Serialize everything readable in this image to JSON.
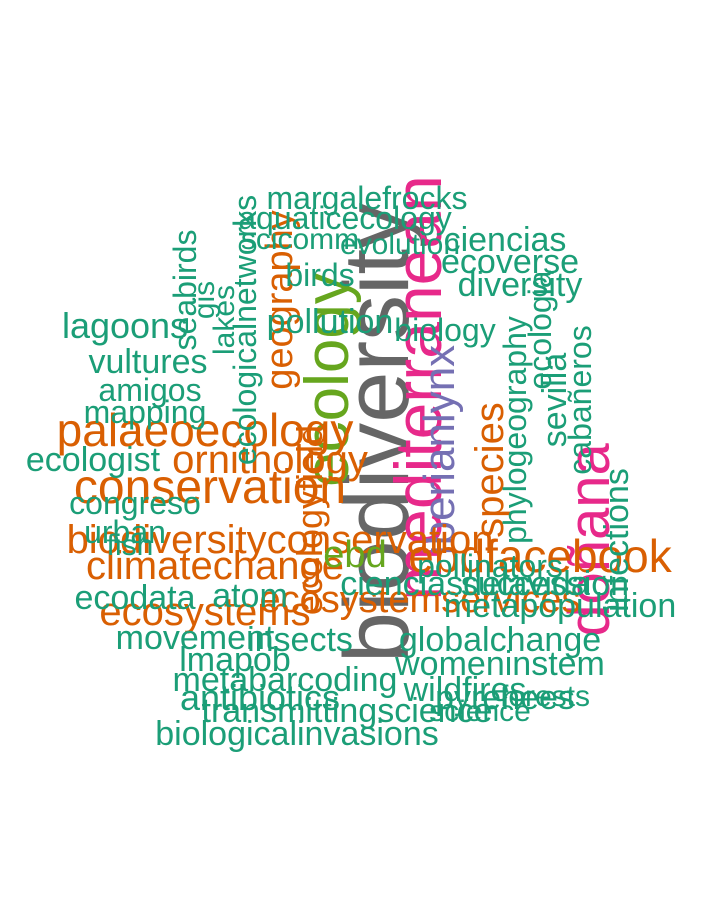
{
  "palette": {
    "teal": "#1b9e77",
    "orange": "#d95f02",
    "purple": "#7570b3",
    "magenta": "#e7298a",
    "green": "#66a61e",
    "grey": "#666666"
  },
  "words": [
    {
      "text": "biodiversity",
      "color": "grey",
      "size": "xl"
    },
    {
      "text": "mediterranean",
      "color": "magenta",
      "size": "xl"
    },
    {
      "text": "ecology",
      "color": "green",
      "size": "xl"
    },
    {
      "text": "doñana",
      "color": "magenta",
      "size": "l"
    },
    {
      "text": "iberianlynx",
      "color": "purple",
      "size": "l"
    },
    {
      "text": "ebdfacebook",
      "color": "orange",
      "size": "l"
    },
    {
      "text": "palaeoecology",
      "color": "orange",
      "size": "l"
    },
    {
      "text": "conservation",
      "color": "orange",
      "size": "l"
    },
    {
      "text": "climatechange",
      "color": "orange",
      "size": "l"
    },
    {
      "text": "ecosystems",
      "color": "orange",
      "size": "l"
    },
    {
      "text": "geography",
      "color": "orange",
      "size": "l"
    },
    {
      "text": "ornithology",
      "color": "orange",
      "size": "l"
    },
    {
      "text": "biodiversityconservation",
      "color": "orange",
      "size": "l"
    },
    {
      "text": "species",
      "color": "orange",
      "size": "l"
    },
    {
      "text": "ecosystemservices",
      "color": "orange",
      "size": "l"
    },
    {
      "text": "ebd",
      "color": "green",
      "size": "l"
    },
    {
      "text": "ecologyfield",
      "color": "orange",
      "size": "l"
    },
    {
      "text": "margalefrocks",
      "color": "teal",
      "size": "m"
    },
    {
      "text": "aquaticecology",
      "color": "teal",
      "size": "m"
    },
    {
      "text": "lagoons",
      "color": "teal",
      "size": "m"
    },
    {
      "text": "vultures",
      "color": "teal",
      "size": "m"
    },
    {
      "text": "amigos",
      "color": "teal",
      "size": "m"
    },
    {
      "text": "mapping",
      "color": "teal",
      "size": "m"
    },
    {
      "text": "ecologist",
      "color": "teal",
      "size": "m"
    },
    {
      "text": "congreso",
      "color": "teal",
      "size": "m"
    },
    {
      "text": "urban",
      "color": "teal",
      "size": "m"
    },
    {
      "text": "fish",
      "color": "teal",
      "size": "m"
    },
    {
      "text": "ecodata",
      "color": "teal",
      "size": "m"
    },
    {
      "text": "atom",
      "color": "teal",
      "size": "m"
    },
    {
      "text": "movement",
      "color": "teal",
      "size": "m"
    },
    {
      "text": "lmapob",
      "color": "teal",
      "size": "m"
    },
    {
      "text": "metabarcoding",
      "color": "teal",
      "size": "m"
    },
    {
      "text": "antibiotics",
      "color": "teal",
      "size": "m"
    },
    {
      "text": "transmittingscience",
      "color": "teal",
      "size": "m"
    },
    {
      "text": "biologicalinvasions",
      "color": "teal",
      "size": "m"
    },
    {
      "text": "insects",
      "color": "teal",
      "size": "m"
    },
    {
      "text": "globalchange",
      "color": "teal",
      "size": "m"
    },
    {
      "text": "womeninstem",
      "color": "teal",
      "size": "m"
    },
    {
      "text": "wildfires",
      "color": "teal",
      "size": "m"
    },
    {
      "text": "pyrenees",
      "color": "teal",
      "size": "m"
    },
    {
      "text": "forests",
      "color": "teal",
      "size": "m"
    },
    {
      "text": "science",
      "color": "teal",
      "size": "m"
    },
    {
      "text": "cienciasdelavida",
      "color": "teal",
      "size": "m"
    },
    {
      "text": "succession",
      "color": "teal",
      "size": "m"
    },
    {
      "text": "pollinators",
      "color": "teal",
      "size": "m"
    },
    {
      "text": "ciencias",
      "color": "teal",
      "size": "m"
    },
    {
      "text": "metapopulation",
      "color": "teal",
      "size": "m"
    },
    {
      "text": "pollution",
      "color": "teal",
      "size": "m"
    },
    {
      "text": "ecoverse",
      "color": "teal",
      "size": "m"
    },
    {
      "text": "diversity",
      "color": "teal",
      "size": "m"
    },
    {
      "text": "birds",
      "color": "teal",
      "size": "m"
    },
    {
      "text": "biology",
      "color": "teal",
      "size": "m"
    },
    {
      "text": "evolution",
      "color": "teal",
      "size": "m"
    },
    {
      "text": "phylogeography",
      "color": "teal",
      "size": "m"
    },
    {
      "text": "sevilla",
      "color": "teal",
      "size": "m"
    },
    {
      "text": "cabañeros",
      "color": "teal",
      "size": "m"
    },
    {
      "text": "infections",
      "color": "teal",
      "size": "m"
    },
    {
      "text": "seabirds",
      "color": "teal",
      "size": "m"
    },
    {
      "text": "gis",
      "color": "teal",
      "size": "m"
    },
    {
      "text": "ecologicalnetworks",
      "color": "teal",
      "size": "m"
    },
    {
      "text": "scicomm",
      "color": "teal",
      "size": "m"
    },
    {
      "text": "lakes",
      "color": "teal",
      "size": "m"
    },
    {
      "text": "ecologia",
      "color": "teal",
      "size": "m"
    }
  ]
}
